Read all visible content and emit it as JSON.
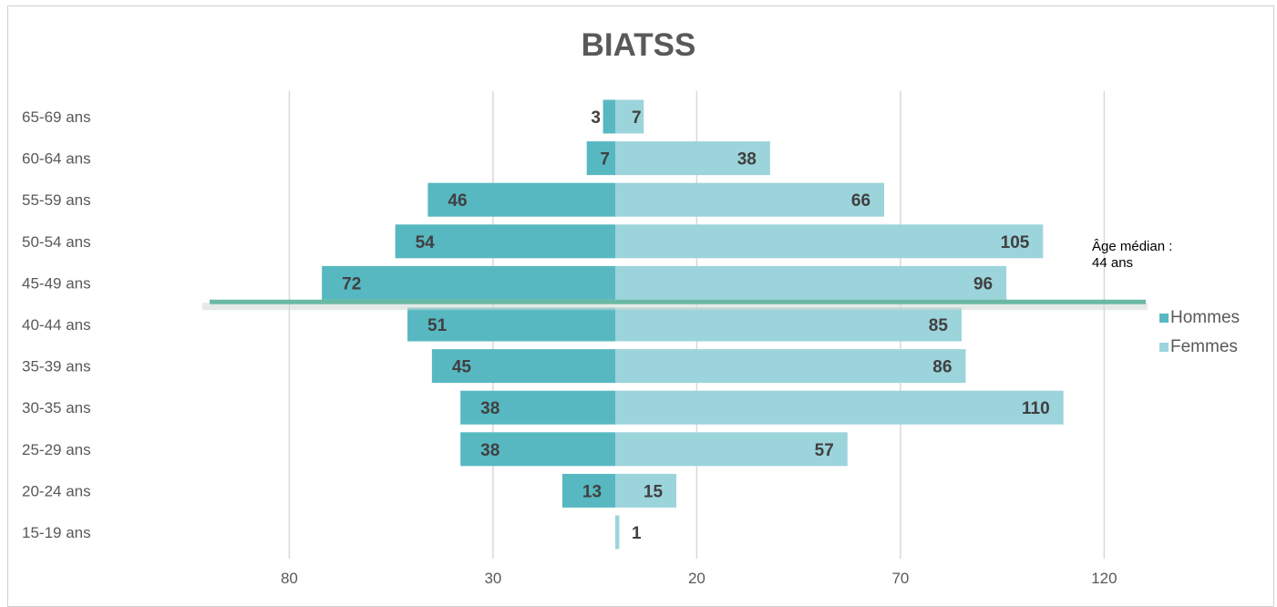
{
  "chart_data": {
    "type": "bar",
    "title": "BIATSS",
    "categories": [
      "65-69 ans",
      "60-64 ans",
      "55-59 ans",
      "50-54 ans",
      "45-49 ans",
      "40-44 ans",
      "35-39 ans",
      "30-35 ans",
      "25-29 ans",
      "20-24 ans",
      "15-19 ans"
    ],
    "series": [
      {
        "name": "Hommes",
        "values": [
          3,
          7,
          46,
          54,
          72,
          51,
          45,
          38,
          38,
          13,
          0
        ],
        "color": "#57b8c1"
      },
      {
        "name": "Femmes",
        "values": [
          7,
          38,
          66,
          105,
          96,
          85,
          86,
          110,
          57,
          15,
          1
        ],
        "color": "#9cd4dc"
      }
    ],
    "value_labels": {
      "Hommes": [
        "3",
        "7",
        "46",
        "54",
        "72",
        "51",
        "45",
        "38",
        "38",
        "13",
        ""
      ],
      "Femmes": [
        "7",
        "38",
        "66",
        "105",
        "96",
        "85",
        "86",
        "110",
        "57",
        "15",
        "1"
      ]
    },
    "x_tick_labels": [
      "80",
      "30",
      "20",
      "70",
      "120"
    ],
    "x_tick_values": [
      -80,
      -30,
      20,
      70,
      120
    ],
    "xlim": [
      -80,
      120
    ],
    "orientation": "horizontal",
    "grid": true,
    "legend_position": "right",
    "annotation": {
      "line1": "Âge médian :",
      "line2": "44 ans"
    },
    "median_line_between": [
      "45-49 ans",
      "40-44 ans"
    ],
    "median_line_color": "#6ab9a4"
  }
}
